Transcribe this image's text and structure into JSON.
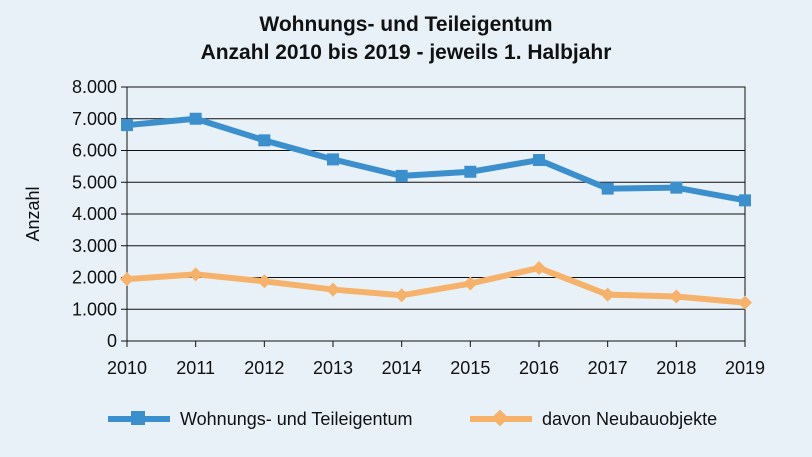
{
  "chart_data": {
    "type": "line",
    "title": "Wohnungs- und Teileigentum",
    "subtitle": "Anzahl 2010 bis 2019 - jeweils 1. Halbjahr",
    "ylabel": "Anzahl",
    "xlabel": "",
    "categories": [
      "2010",
      "2011",
      "2012",
      "2013",
      "2014",
      "2015",
      "2016",
      "2017",
      "2018",
      "2019"
    ],
    "ylim": [
      0,
      8000
    ],
    "yticks": [
      0,
      1000,
      2000,
      3000,
      4000,
      5000,
      6000,
      7000,
      8000
    ],
    "ytick_labels": [
      "0",
      "1.000",
      "2.000",
      "3.000",
      "4.000",
      "5.000",
      "6.000",
      "7.000",
      "8.000"
    ],
    "grid": true,
    "legend_position": "bottom",
    "series": [
      {
        "name": "Wohnungs- und Teileigentum",
        "color": "#3b8fcd",
        "marker": "square",
        "values": [
          6800,
          7000,
          6320,
          5720,
          5200,
          5330,
          5700,
          4800,
          4830,
          4430
        ]
      },
      {
        "name": "davon Neubauobjekte",
        "color": "#f6b26b",
        "marker": "diamond",
        "values": [
          1950,
          2100,
          1880,
          1620,
          1440,
          1810,
          2300,
          1460,
          1400,
          1210
        ]
      }
    ]
  }
}
